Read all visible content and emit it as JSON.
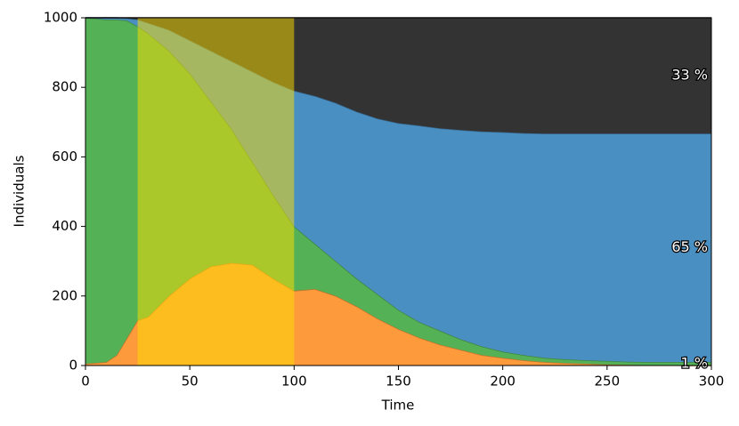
{
  "chart_data": {
    "type": "stacked_area",
    "xlabel": "Time",
    "ylabel": "Individuals",
    "x": [
      0,
      10,
      15,
      20,
      25,
      30,
      40,
      50,
      60,
      70,
      80,
      90,
      100,
      110,
      120,
      130,
      140,
      150,
      160,
      170,
      180,
      190,
      200,
      210,
      220,
      230,
      240,
      250,
      260,
      270,
      280,
      290,
      300
    ],
    "series": [
      {
        "color": "#fd9a3c",
        "values": [
          5,
          10,
          30,
          80,
          130,
          140,
          200,
          250,
          285,
          295,
          290,
          250,
          215,
          220,
          200,
          170,
          135,
          105,
          80,
          60,
          45,
          30,
          22,
          15,
          10,
          7,
          5,
          3,
          2,
          1,
          1,
          0,
          0
        ]
      },
      {
        "color": "#55b155",
        "label": "1 %",
        "values": [
          995,
          985,
          965,
          912,
          845,
          815,
          705,
          590,
          475,
          385,
          295,
          240,
          185,
          130,
          100,
          80,
          70,
          55,
          45,
          40,
          30,
          25,
          18,
          15,
          12,
          11,
          10,
          10,
          9,
          9,
          9,
          10,
          10
        ]
      },
      {
        "color": "#4a8fc2",
        "label": "65 %",
        "values": [
          0,
          5,
          5,
          6,
          20,
          30,
          60,
          95,
          145,
          195,
          260,
          325,
          390,
          425,
          455,
          480,
          505,
          537,
          565,
          582,
          602,
          618,
          631,
          638,
          645,
          649,
          652,
          654,
          656,
          657,
          657,
          657,
          657
        ]
      },
      {
        "color": "#333333",
        "label": "33 %",
        "values": [
          0,
          0,
          0,
          2,
          5,
          15,
          35,
          65,
          95,
          125,
          155,
          185,
          210,
          225,
          245,
          270,
          290,
          303,
          310,
          318,
          323,
          327,
          329,
          332,
          333,
          333,
          333,
          333,
          333,
          333,
          333,
          333,
          333
        ]
      }
    ],
    "highlight": {
      "xlim": [
        25,
        100
      ],
      "color": "#ffe000",
      "alpha": 0.5
    },
    "xlim": [
      0,
      300
    ],
    "xticks": [
      0,
      50,
      100,
      150,
      200,
      250,
      300
    ],
    "ylim": [
      0,
      1000
    ],
    "yticks": [
      0,
      200,
      400,
      600,
      800,
      1000
    ],
    "grid": false
  }
}
